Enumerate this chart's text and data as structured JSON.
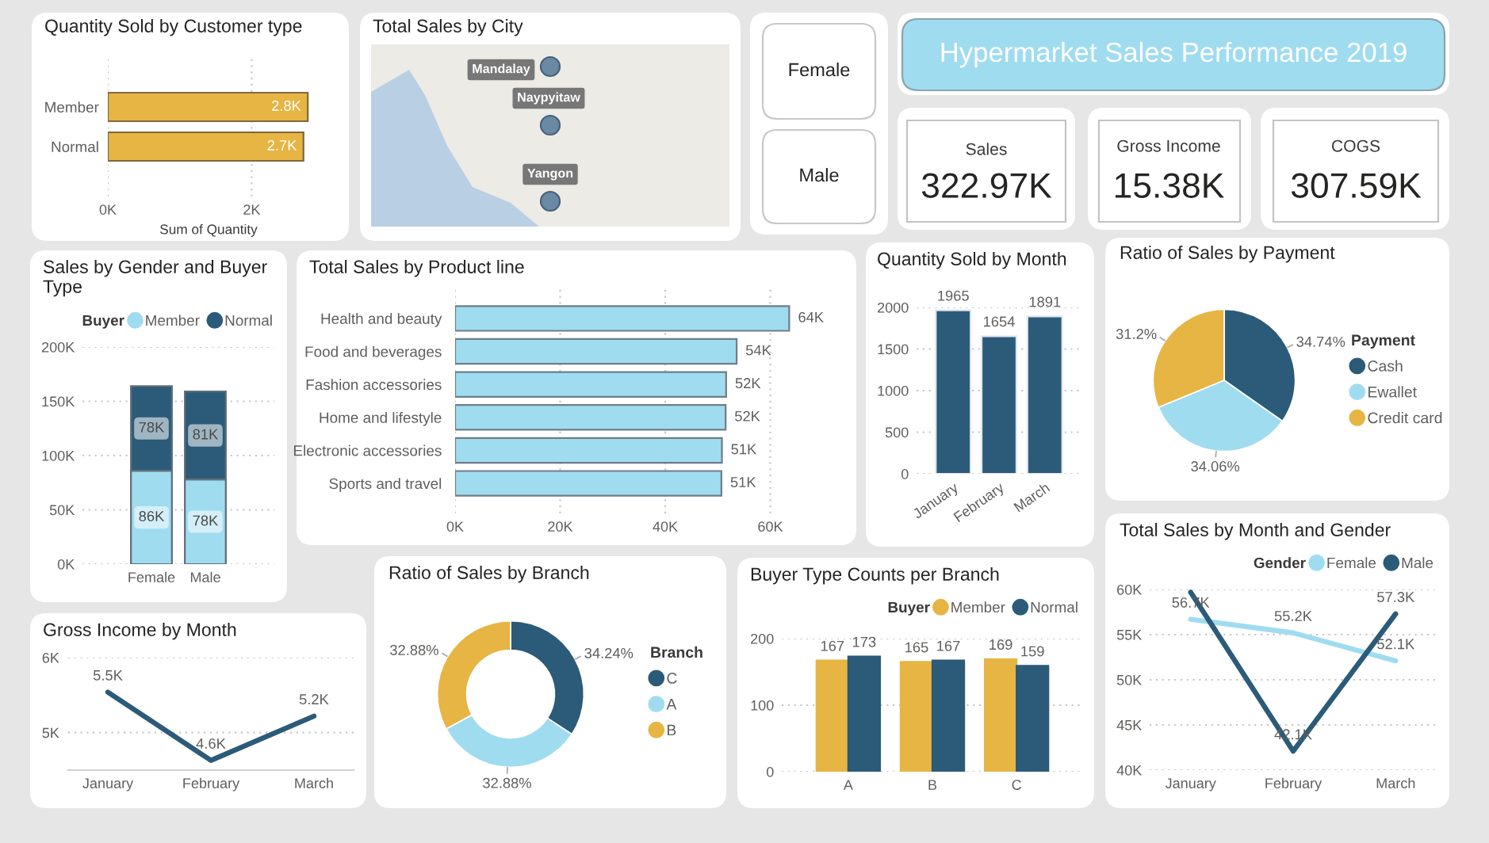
{
  "chart_data": [
    {
      "type": "bar",
      "orientation": "horizontal",
      "title": "Quantity Sold by Customer type",
      "xlabel": "Sum of Quantity",
      "categories": [
        "Member",
        "Normal"
      ],
      "values": [
        2780,
        2720
      ],
      "value_labels": [
        "2.8K",
        "2.7K"
      ],
      "color": "#e6b543",
      "xlim": [
        0,
        2800
      ],
      "xticks": [
        {
          "value": 0,
          "label": "0K"
        },
        {
          "value": 2000,
          "label": "2K"
        }
      ],
      "grid": "x"
    },
    {
      "type": "other",
      "title": "Total Sales by City",
      "annotations": [
        "Mandalay",
        "Naypyitaw",
        "Yangon"
      ]
    },
    {
      "type": "other",
      "annotations": [
        "Female",
        "Male"
      ]
    },
    {
      "type": "other",
      "title": "Hypermarket Sales Performance 2019"
    },
    {
      "type": "other",
      "title": "Sales",
      "annotations": [
        "322.97K"
      ]
    },
    {
      "type": "other",
      "title": "Gross Income",
      "annotations": [
        "15.38K"
      ]
    },
    {
      "type": "other",
      "title": "COGS",
      "annotations": [
        "307.59K"
      ]
    },
    {
      "type": "bar",
      "stacked": true,
      "title": "Sales by Gender and Buyer Type",
      "legend_title": "Buyer",
      "legend": "top right",
      "categories": [
        "Female",
        "Male"
      ],
      "series": [
        {
          "name": "Member",
          "color": "#a0dcf0",
          "values": [
            86000,
            78000
          ],
          "value_labels": [
            "86K",
            "78K"
          ]
        },
        {
          "name": "Normal",
          "color": "#2b5b78",
          "values": [
            78000,
            81000
          ],
          "value_labels": [
            "78K",
            "81K"
          ]
        }
      ],
      "ylim": [
        0,
        200000
      ],
      "yticks": [
        {
          "value": 0,
          "label": "0K"
        },
        {
          "value": 50000,
          "label": "50K"
        },
        {
          "value": 100000,
          "label": "100K"
        },
        {
          "value": 150000,
          "label": "150K"
        },
        {
          "value": 200000,
          "label": "200K"
        }
      ],
      "grid": "y"
    },
    {
      "type": "bar",
      "orientation": "horizontal",
      "title": "Total Sales by Product line",
      "categories": [
        "Health and beauty",
        "Food and beverages",
        "Fashion accessories",
        "Home and lifestyle",
        "Electronic accessories",
        "Sports and travel"
      ],
      "values": [
        63600,
        53600,
        51600,
        51500,
        50800,
        50700
      ],
      "value_labels": [
        "64K",
        "54K",
        "52K",
        "52K",
        "51K",
        "51K"
      ],
      "color": "#a0dcf0",
      "xlim": [
        0,
        64000
      ],
      "xticks": [
        {
          "value": 0,
          "label": "0K"
        },
        {
          "value": 20000,
          "label": "20K"
        },
        {
          "value": 40000,
          "label": "40K"
        },
        {
          "value": 60000,
          "label": "60K"
        }
      ],
      "grid": "x"
    },
    {
      "type": "bar",
      "title": "Quantity Sold by Month",
      "categories": [
        "January",
        "February",
        "March"
      ],
      "values": [
        1965,
        1654,
        1891
      ],
      "data_labels": true,
      "color": "#2b5b78",
      "ylim": [
        0,
        2000
      ],
      "yticks": [
        0,
        500,
        1000,
        1500,
        2000
      ],
      "grid": "y"
    },
    {
      "type": "pie",
      "title": "Ratio of Sales by Payment",
      "legend_title": "Payment",
      "legend": "right",
      "categories": [
        "Cash",
        "Ewallet",
        "Credit card"
      ],
      "values": [
        34.74,
        34.06,
        31.2
      ],
      "value_labels": [
        "34.74%",
        "34.06%",
        "31.2%"
      ],
      "colors": [
        "#2b5b78",
        "#a0dcf0",
        "#e6b543"
      ]
    },
    {
      "type": "line",
      "title": "Gross Income by Month",
      "categories": [
        "January",
        "February",
        "March"
      ],
      "values": [
        5540,
        4630,
        5220
      ],
      "value_labels": [
        "5.5K",
        "4.6K",
        "5.2K"
      ],
      "color": "#2b5b78",
      "ylim": [
        4500,
        6000
      ],
      "yticks": [
        {
          "value": 5000,
          "label": "5K"
        },
        {
          "value": 6000,
          "label": "6K"
        }
      ],
      "grid": "y"
    },
    {
      "type": "donut",
      "title": "Ratio of Sales by Branch",
      "legend_title": "Branch",
      "legend": "right",
      "categories": [
        "C",
        "A",
        "B"
      ],
      "values": [
        34.24,
        32.88,
        32.88
      ],
      "value_labels": [
        "34.24%",
        "32.88%",
        "32.88%"
      ],
      "colors": [
        "#2b5b78",
        "#a0dcf0",
        "#e6b543"
      ]
    },
    {
      "type": "bar",
      "title": "Buyer Type Counts per Branch",
      "legend_title": "Buyer",
      "legend": "top right",
      "categories": [
        "A",
        "B",
        "C"
      ],
      "series": [
        {
          "name": "Member",
          "color": "#e6b543",
          "values": [
            167,
            165,
            169
          ]
        },
        {
          "name": "Normal",
          "color": "#2b5b78",
          "values": [
            173,
            167,
            159
          ]
        }
      ],
      "data_labels": true,
      "ylim": [
        0,
        200
      ],
      "yticks": [
        0,
        100,
        200
      ],
      "grid": "y"
    },
    {
      "type": "line",
      "title": "Total Sales by Month and Gender",
      "legend_title": "Gender",
      "legend": "top right",
      "categories": [
        "January",
        "February",
        "March"
      ],
      "series": [
        {
          "name": "Female",
          "color": "#a0dcf0",
          "values": [
            56700,
            55200,
            52100
          ],
          "value_labels": [
            "56.7K",
            "55.2K",
            "52.1K"
          ]
        },
        {
          "name": "Male",
          "color": "#2b5b78",
          "values": [
            59700,
            42100,
            57300
          ],
          "value_labels": [
            null,
            "42.1K",
            "57.3K"
          ]
        }
      ],
      "ylim": [
        40000,
        60000
      ],
      "yticks": [
        {
          "value": 40000,
          "label": "40K"
        },
        {
          "value": 45000,
          "label": "45K"
        },
        {
          "value": 50000,
          "label": "50K"
        },
        {
          "value": 55000,
          "label": "55K"
        },
        {
          "value": 60000,
          "label": "60K"
        }
      ],
      "grid": "y"
    }
  ]
}
